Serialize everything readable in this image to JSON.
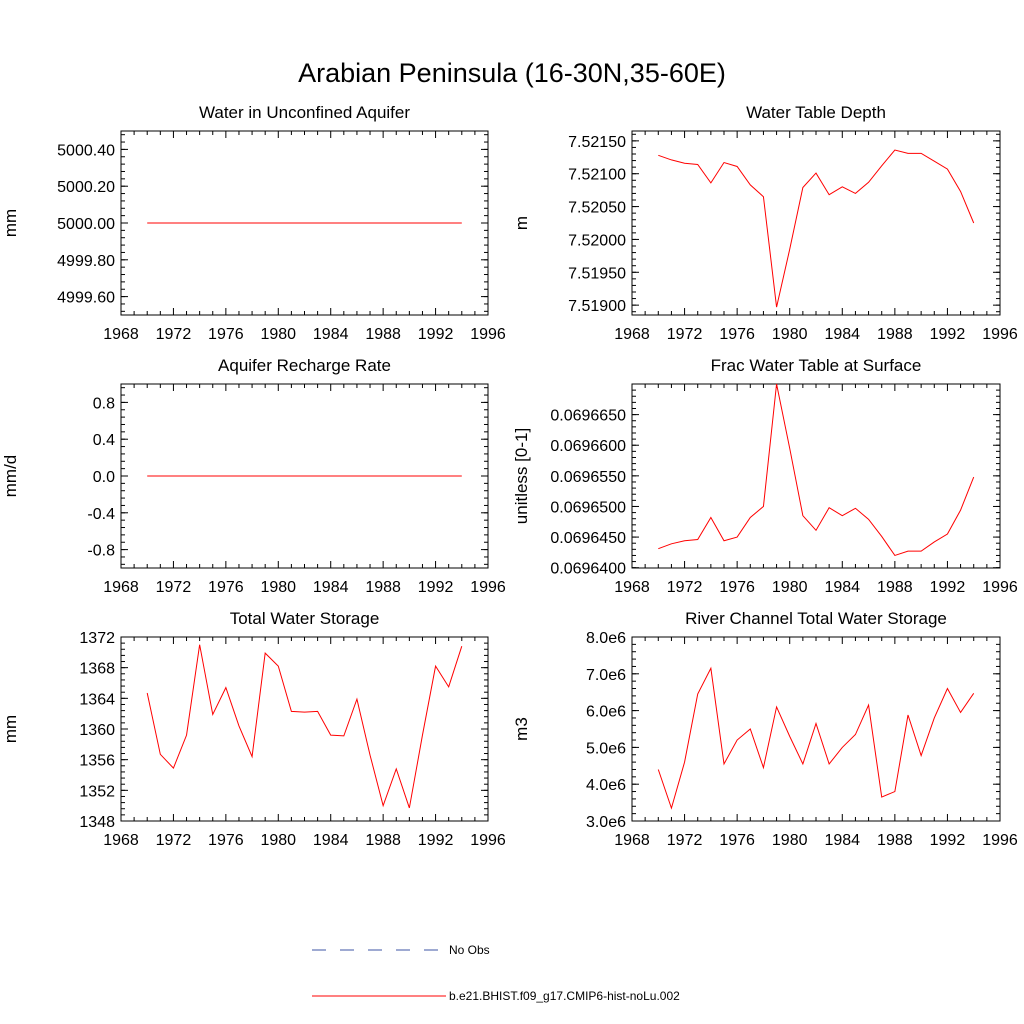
{
  "main_title": "Arabian Peninsula (16-30N,35-60E)",
  "colors": {
    "model_line": "#ff0000",
    "obs_line": "#3d56a6",
    "axis": "#000000"
  },
  "legend": {
    "obs_label": "No Obs",
    "model_label": "b.e21.BHIST.f09_g17.CMIP6-hist-noLu.002"
  },
  "chart_data": [
    {
      "type": "line",
      "title": "Water in Unconfined Aquifer",
      "ylabel": "mm",
      "xlim": [
        1968,
        1996
      ],
      "ylim": [
        4999.5,
        5000.5
      ],
      "xticks": [
        "1968",
        "1972",
        "1976",
        "1980",
        "1984",
        "1988",
        "1992",
        "1996"
      ],
      "yticks": [
        4999.6,
        4999.8,
        5000.0,
        5000.2,
        5000.4
      ],
      "yticklabels": [
        "4999.60",
        "4999.80",
        "5000.00",
        "5000.20",
        "5000.40"
      ],
      "x": [
        1970,
        1971,
        1972,
        1973,
        1974,
        1975,
        1976,
        1977,
        1978,
        1979,
        1980,
        1981,
        1982,
        1983,
        1984,
        1985,
        1986,
        1987,
        1988,
        1989,
        1990,
        1991,
        1992,
        1993,
        1994
      ],
      "series": [
        {
          "values": [
            5000,
            5000,
            5000,
            5000,
            5000,
            5000,
            5000,
            5000,
            5000,
            5000,
            5000,
            5000,
            5000,
            5000,
            5000,
            5000,
            5000,
            5000,
            5000,
            5000,
            5000,
            5000,
            5000,
            5000,
            5000
          ]
        }
      ]
    },
    {
      "type": "line",
      "title": "Water Table Depth",
      "ylabel": "m",
      "xlim": [
        1968,
        1996
      ],
      "ylim": [
        7.51885,
        7.52165
      ],
      "xticks": [
        "1968",
        "1972",
        "1976",
        "1980",
        "1984",
        "1988",
        "1992",
        "1996"
      ],
      "yticks": [
        7.519,
        7.5195,
        7.52,
        7.5205,
        7.521,
        7.5215
      ],
      "yticklabels": [
        "7.51900",
        "7.51950",
        "7.52000",
        "7.52050",
        "7.52100",
        "7.52150"
      ],
      "x": [
        1970,
        1971,
        1972,
        1973,
        1974,
        1975,
        1976,
        1977,
        1978,
        1979,
        1980,
        1981,
        1982,
        1983,
        1984,
        1985,
        1986,
        1987,
        1988,
        1989,
        1990,
        1991,
        1992,
        1993,
        1994
      ],
      "series": [
        {
          "values": [
            7.52128,
            7.52121,
            7.52116,
            7.52114,
            7.52086,
            7.52117,
            7.52111,
            7.52083,
            7.52065,
            7.51897,
            7.51985,
            7.52079,
            7.52101,
            7.52068,
            7.5208,
            7.5207,
            7.52087,
            7.52112,
            7.52136,
            7.52131,
            7.52131,
            7.52119,
            7.52107,
            7.52073,
            7.52025
          ]
        }
      ]
    },
    {
      "type": "line",
      "title": "Aquifer Recharge Rate",
      "ylabel": "mm/d",
      "xlim": [
        1968,
        1996
      ],
      "ylim": [
        -1.0,
        1.0
      ],
      "xticks": [
        "1968",
        "1972",
        "1976",
        "1980",
        "1984",
        "1988",
        "1992",
        "1996"
      ],
      "yticks": [
        -0.8,
        -0.4,
        0.0,
        0.4,
        0.8
      ],
      "yticklabels": [
        "-0.8",
        "-0.4",
        "0.0",
        "0.4",
        "0.8"
      ],
      "x": [
        1970,
        1971,
        1972,
        1973,
        1974,
        1975,
        1976,
        1977,
        1978,
        1979,
        1980,
        1981,
        1982,
        1983,
        1984,
        1985,
        1986,
        1987,
        1988,
        1989,
        1990,
        1991,
        1992,
        1993,
        1994
      ],
      "series": [
        {
          "values": [
            0,
            0,
            0,
            0,
            0,
            0,
            0,
            0,
            0,
            0,
            0,
            0,
            0,
            0,
            0,
            0,
            0,
            0,
            0,
            0,
            0,
            0,
            0,
            0,
            0
          ]
        }
      ]
    },
    {
      "type": "line",
      "title": "Frac Water Table at Surface",
      "ylabel": "unitless [0-1]",
      "xlim": [
        1968,
        1996
      ],
      "ylim": [
        0.06963995,
        0.06967
      ],
      "xticks": [
        "1968",
        "1972",
        "1976",
        "1980",
        "1984",
        "1988",
        "1992",
        "1996"
      ],
      "yticks": [
        0.06964,
        0.069645,
        0.06965,
        0.069655,
        0.06966,
        0.069665
      ],
      "yticklabels": [
        "0.0696400",
        "0.0696450",
        "0.0696500",
        "0.0696550",
        "0.0696600",
        "0.0696650"
      ],
      "x": [
        1970,
        1971,
        1972,
        1973,
        1974,
        1975,
        1976,
        1977,
        1978,
        1979,
        1980,
        1981,
        1982,
        1983,
        1984,
        1985,
        1986,
        1987,
        1988,
        1989,
        1990,
        1991,
        1992,
        1993,
        1994
      ],
      "series": [
        {
          "values": [
            0.0696431,
            0.0696439,
            0.0696444,
            0.0696446,
            0.0696482,
            0.0696444,
            0.069645,
            0.0696482,
            0.06965,
            0.06967,
            0.0696595,
            0.0696485,
            0.0696461,
            0.0696498,
            0.0696485,
            0.0696497,
            0.0696479,
            0.0696451,
            0.069642,
            0.0696427,
            0.0696427,
            0.0696442,
            0.0696455,
            0.0696494,
            0.0696548
          ]
        }
      ]
    },
    {
      "type": "line",
      "title": "Total Water Storage",
      "ylabel": "mm",
      "xlim": [
        1968,
        1996
      ],
      "ylim": [
        1348,
        1372
      ],
      "xticks": [
        "1968",
        "1972",
        "1976",
        "1980",
        "1984",
        "1988",
        "1992",
        "1996"
      ],
      "yticks": [
        1348,
        1352,
        1356,
        1360,
        1364,
        1368,
        1372
      ],
      "yticklabels": [
        "1348",
        "1352",
        "1356",
        "1360",
        "1364",
        "1368",
        "1372"
      ],
      "x": [
        1970,
        1971,
        1972,
        1973,
        1974,
        1975,
        1976,
        1977,
        1978,
        1979,
        1980,
        1981,
        1982,
        1983,
        1984,
        1985,
        1986,
        1987,
        1988,
        1989,
        1990,
        1991,
        1992,
        1993,
        1994
      ],
      "series": [
        {
          "values": [
            1364.7,
            1356.7,
            1354.9,
            1359.2,
            1371.0,
            1361.9,
            1365.4,
            1360.4,
            1356.4,
            1369.9,
            1368.2,
            1362.3,
            1362.2,
            1362.3,
            1359.2,
            1359.1,
            1363.9,
            1356.6,
            1350.0,
            1354.8,
            1349.7,
            1359.2,
            1368.2,
            1365.5,
            1370.8
          ]
        }
      ]
    },
    {
      "type": "line",
      "title": "River Channel Total Water Storage",
      "ylabel": "m3",
      "xlim": [
        1968,
        1996
      ],
      "ylim": [
        3000000,
        8000000
      ],
      "xticks": [
        "1968",
        "1972",
        "1976",
        "1980",
        "1984",
        "1988",
        "1992",
        "1996"
      ],
      "yticks": [
        3000000,
        4000000,
        5000000,
        6000000,
        7000000,
        8000000
      ],
      "yticklabels": [
        "3.0e6",
        "4.0e6",
        "5.0e6",
        "6.0e6",
        "7.0e6",
        "8.0e6"
      ],
      "x": [
        1970,
        1971,
        1972,
        1973,
        1974,
        1975,
        1976,
        1977,
        1978,
        1979,
        1980,
        1981,
        1982,
        1983,
        1984,
        1985,
        1986,
        1987,
        1988,
        1989,
        1990,
        1991,
        1992,
        1993,
        1994
      ],
      "series": [
        {
          "values": [
            4400000,
            3350000,
            4600000,
            6450000,
            7150000,
            4550000,
            5200000,
            5500000,
            4450000,
            6100000,
            5300000,
            4550000,
            5650000,
            4550000,
            5000000,
            5350000,
            6150000,
            3650000,
            3800000,
            5880000,
            4780000,
            5800000,
            6600000,
            5950000,
            6470000
          ]
        }
      ]
    }
  ]
}
